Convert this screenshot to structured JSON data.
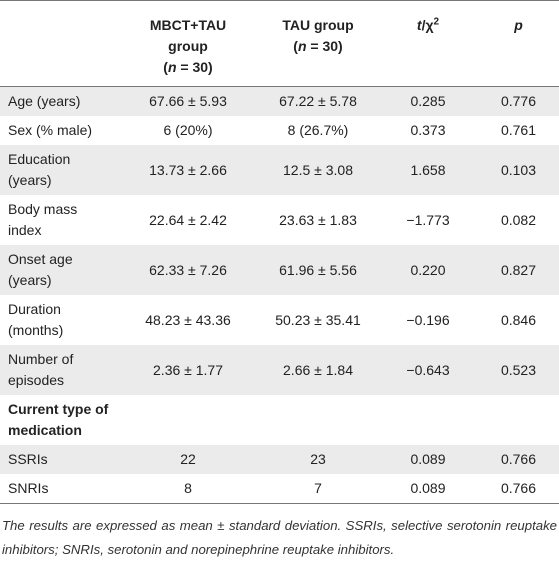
{
  "table": {
    "header": [
      [],
      [
        [
          {
            "text": "MBCT+TAU"
          }
        ],
        [
          {
            "text": "group"
          }
        ],
        [
          {
            "text": "("
          },
          {
            "text": "n",
            "italic": true
          },
          {
            "text": " = 30)"
          }
        ]
      ],
      [
        [
          {
            "text": "TAU group"
          }
        ],
        [
          {
            "text": "("
          },
          {
            "text": "n",
            "italic": true
          },
          {
            "text": " = 30)"
          }
        ]
      ],
      [
        [
          {
            "text": "t",
            "italic": true
          },
          {
            "text": "/χ"
          },
          {
            "text": "2",
            "sup": true
          }
        ]
      ],
      [
        [
          {
            "text": "p",
            "italic": true
          }
        ]
      ]
    ],
    "rows": [
      {
        "cells": [
          "Age (years)",
          "67.66 ± 5.93",
          "67.22 ± 5.78",
          "0.285",
          "0.776"
        ]
      },
      {
        "cells": [
          "Sex (% male)",
          "6 (20%)",
          "8 (26.7%)",
          "0.373",
          "0.761"
        ]
      },
      {
        "cells": [
          "Education (years)",
          "13.73 ± 2.66",
          "12.5 ± 3.08",
          "1.658",
          "0.103"
        ]
      },
      {
        "cells": [
          "Body mass index",
          "22.64 ± 2.42",
          "23.63 ± 1.83",
          "−1.773",
          "0.082"
        ]
      },
      {
        "cells": [
          "Onset age (years)",
          "62.33 ± 7.26",
          "61.96 ± 5.56",
          "0.220",
          "0.827"
        ]
      },
      {
        "cells": [
          "Duration (months)",
          "48.23 ± 43.36",
          "50.23 ± 35.41",
          "−0.196",
          "0.846"
        ]
      },
      {
        "cells": [
          "Number of episodes",
          "2.36 ± 1.77",
          "2.66 ± 1.84",
          "−0.643",
          "0.523"
        ]
      },
      {
        "section": "Current type of medication"
      },
      {
        "cells": [
          "SSRIs",
          "22",
          "23",
          "0.089",
          "0.766"
        ]
      },
      {
        "cells": [
          "SNRIs",
          "8",
          "7",
          "0.089",
          "0.766"
        ]
      }
    ]
  },
  "footnote": "The results are expressed as mean ± standard deviation. SSRIs, selective serotonin reuptake inhibitors; SNRIs, serotonin and norepinephrine reuptake inhibitors."
}
